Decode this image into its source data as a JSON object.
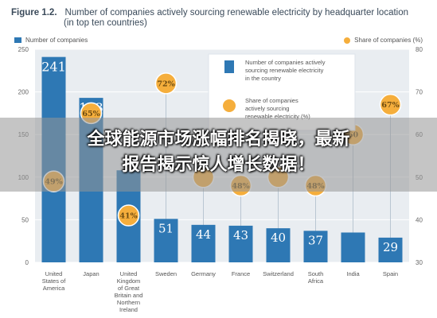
{
  "figure": {
    "number": "Figure 1.2.",
    "title_line1": "Number of companies actively sourcing renewable electricity by headquarter location",
    "title_line2": "(in top ten countries)"
  },
  "legend": {
    "left_label": "Number of companies",
    "right_label": "Share of companies (%)",
    "inset_bar_line1": "Number of companies actively",
    "inset_bar_line2": "sourcing renewable electricity",
    "inset_bar_line3": "in the country",
    "inset_dot_line1": "Share of companies",
    "inset_dot_line2": "actively sourcing",
    "inset_dot_line3": "renewable electricity (%)"
  },
  "banner": {
    "line1": "全球能源市场涨幅排名揭晓，最新",
    "line2": "报告揭示惊人增长数据！"
  },
  "colors": {
    "bar": "#2e78b4",
    "dot": "#f5ae3c",
    "grid": "#ffffff",
    "background": "#e9edf1",
    "title": "#3a4a5a"
  },
  "chart_data": {
    "type": "bar",
    "categories": [
      "United States of America",
      "Japan",
      "United Kingdom of Great Britain and Northern Ireland",
      "Sweden",
      "Germany",
      "France",
      "Switzerland",
      "South Africa",
      "India",
      "Spain"
    ],
    "category_lines": [
      [
        "United",
        "States of",
        "America"
      ],
      [
        "Japan"
      ],
      [
        "United",
        "Kingdom",
        "of Great",
        "Britain and",
        "Northern",
        "Ireland"
      ],
      [
        "Sweden"
      ],
      [
        "Germany"
      ],
      [
        "France"
      ],
      [
        "Switzerland"
      ],
      [
        "South",
        "Africa"
      ],
      [
        "India"
      ],
      [
        "Spain"
      ]
    ],
    "series": [
      {
        "name": "Number of companies",
        "axis": "left",
        "values": [
          241,
          193,
          108,
          51,
          44,
          43,
          40,
          37,
          35,
          29
        ],
        "labels": [
          "241",
          "193",
          "",
          "51",
          "44",
          "43",
          "40",
          "37",
          "",
          "29"
        ]
      },
      {
        "name": "Share of companies (%)",
        "axis": "right",
        "values": [
          49,
          65,
          41,
          72,
          50,
          48,
          50,
          48,
          60,
          67
        ],
        "labels": [
          "49%",
          "65%",
          "41%",
          "72%",
          "",
          "48%",
          "",
          "48%",
          "60",
          "67%"
        ]
      }
    ],
    "ylim_left": [
      0,
      250
    ],
    "yticks_left": [
      0,
      50,
      100,
      150,
      200,
      250
    ],
    "ylim_right": [
      30,
      80
    ],
    "yticks_right": [
      30,
      40,
      50,
      60,
      70,
      80
    ],
    "grid": true
  }
}
